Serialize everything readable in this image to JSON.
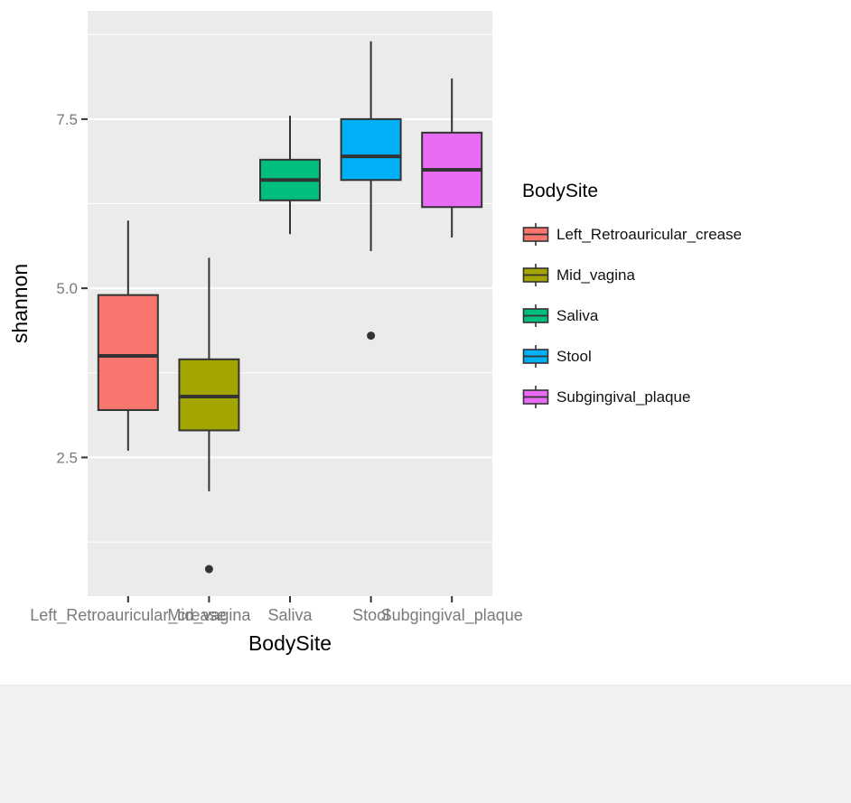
{
  "figure": {
    "y_axis_title": "shannon",
    "x_axis_title": "BodySite",
    "legend_title": "BodySite"
  },
  "chart_data": {
    "type": "boxplot",
    "title": "",
    "xlabel": "BodySite",
    "ylabel": "shannon",
    "ylim": [
      0.45,
      9.1
    ],
    "yticks": [
      2.5,
      5.0,
      7.5
    ],
    "grid": true,
    "legend_position": "right",
    "legend_title": "BodySite",
    "panel_background": "#EBEBEB",
    "gridline_color": "#FFFFFF",
    "box_outline_color": "#333333",
    "tick_label_color": "#7a7a7a",
    "categories": [
      "Left_Retroauricular_crease",
      "Mid_vagina",
      "Saliva",
      "Stool",
      "Subgingival_plaque"
    ],
    "colors": [
      "#F8766D",
      "#A3A500",
      "#00BF7D",
      "#00B0F6",
      "#E76BF3"
    ],
    "series": [
      {
        "name": "Left_Retroauricular_crease",
        "color": "#F8766D",
        "whisker_low": 2.6,
        "q1": 3.2,
        "median": 4.0,
        "q3": 4.9,
        "whisker_high": 6.0,
        "outliers": []
      },
      {
        "name": "Mid_vagina",
        "color": "#A3A500",
        "whisker_low": 2.0,
        "q1": 2.9,
        "median": 3.4,
        "q3": 3.95,
        "whisker_high": 5.45,
        "outliers": [
          0.85
        ]
      },
      {
        "name": "Saliva",
        "color": "#00BF7D",
        "whisker_low": 5.8,
        "q1": 6.3,
        "median": 6.6,
        "q3": 6.9,
        "whisker_high": 7.55,
        "outliers": []
      },
      {
        "name": "Stool",
        "color": "#00B0F6",
        "whisker_low": 5.55,
        "q1": 6.6,
        "median": 6.95,
        "q3": 7.5,
        "whisker_high": 8.65,
        "outliers": [
          4.3
        ]
      },
      {
        "name": "Subgingival_plaque",
        "color": "#E76BF3",
        "whisker_low": 5.75,
        "q1": 6.2,
        "median": 6.75,
        "q3": 7.3,
        "whisker_high": 8.1,
        "outliers": []
      }
    ]
  }
}
